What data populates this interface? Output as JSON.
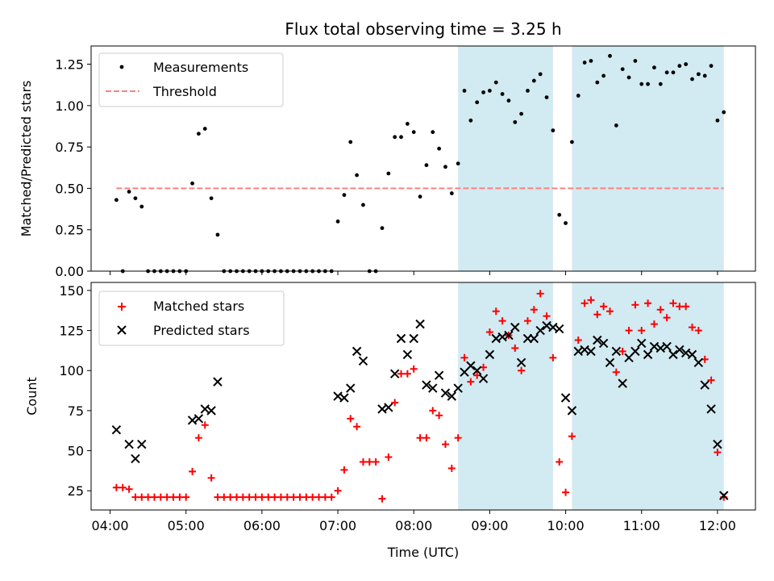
{
  "chart_data": [
    {
      "type": "scatter",
      "title": "Flux total observing time = 3.25 h",
      "ylabel": "Matched/Predicted stars",
      "xlim": [
        "03:45",
        "12:30"
      ],
      "ylim": [
        0,
        1.36
      ],
      "yticks": [
        "0.00",
        "0.25",
        "0.50",
        "0.75",
        "1.00",
        "1.25"
      ],
      "legend_position": "upper-left",
      "highlight_spans": [
        [
          "08:35",
          "09:50"
        ],
        [
          "10:05",
          "12:05"
        ]
      ],
      "highlight_color": "#add8e6",
      "series": [
        {
          "name": "Measurements",
          "color": "#000000",
          "x": [
            "04:05",
            "04:10",
            "04:15",
            "04:20",
            "04:25",
            "04:30",
            "04:35",
            "04:40",
            "04:45",
            "04:50",
            "04:55",
            "05:00",
            "05:05",
            "05:10",
            "05:15",
            "05:20",
            "05:25",
            "05:30",
            "05:35",
            "05:40",
            "05:45",
            "05:50",
            "05:55",
            "06:00",
            "06:05",
            "06:10",
            "06:15",
            "06:20",
            "06:25",
            "06:30",
            "06:35",
            "06:40",
            "06:45",
            "06:50",
            "06:55",
            "07:00",
            "07:05",
            "07:10",
            "07:15",
            "07:20",
            "07:25",
            "07:30",
            "07:35",
            "07:40",
            "07:45",
            "07:50",
            "07:55",
            "08:00",
            "08:05",
            "08:10",
            "08:15",
            "08:20",
            "08:25",
            "08:30",
            "08:35",
            "08:40",
            "08:45",
            "08:50",
            "08:55",
            "09:00",
            "09:05",
            "09:10",
            "09:15",
            "09:20",
            "09:25",
            "09:30",
            "09:35",
            "09:40",
            "09:45",
            "09:50",
            "09:55",
            "10:00",
            "10:05",
            "10:10",
            "10:15",
            "10:20",
            "10:25",
            "10:30",
            "10:35",
            "10:40",
            "10:45",
            "10:50",
            "10:55",
            "11:00",
            "11:05",
            "11:10",
            "11:15",
            "11:20",
            "11:25",
            "11:30",
            "11:35",
            "11:40",
            "11:45",
            "11:50",
            "11:55",
            "12:00",
            "12:05"
          ],
          "y": [
            0.43,
            0.0,
            0.48,
            0.44,
            0.39,
            0.0,
            0.0,
            0.0,
            0.0,
            0.0,
            0.0,
            0.0,
            0.53,
            0.83,
            0.86,
            0.44,
            0.22,
            0.0,
            0.0,
            0.0,
            0.0,
            0.0,
            0.0,
            0.0,
            0.0,
            0.0,
            0.0,
            0.0,
            0.0,
            0.0,
            0.0,
            0.0,
            0.0,
            0.0,
            0.0,
            0.3,
            0.46,
            0.78,
            0.58,
            0.4,
            0.0,
            0.0,
            0.26,
            0.59,
            0.81,
            0.81,
            0.89,
            0.84,
            0.45,
            0.64,
            0.84,
            0.74,
            0.63,
            0.47,
            0.65,
            1.09,
            0.91,
            1.02,
            1.08,
            1.09,
            1.14,
            1.07,
            1.03,
            0.9,
            0.95,
            1.09,
            1.15,
            1.19,
            1.05,
            0.85,
            0.34,
            0.29,
            0.78,
            1.06,
            1.26,
            1.27,
            1.14,
            1.18,
            1.3,
            0.88,
            1.22,
            1.17,
            1.27,
            1.13,
            1.13,
            1.23,
            1.13,
            1.2,
            1.2,
            1.24,
            1.25,
            1.16,
            1.19,
            1.18,
            1.24,
            0.91,
            0.96
          ]
        },
        {
          "name": "Threshold",
          "color": "#ff8080",
          "style": "dashed",
          "x": [
            "04:05",
            "12:05"
          ],
          "y": [
            0.5,
            0.5
          ]
        }
      ]
    },
    {
      "type": "scatter",
      "xlabel": "Time (UTC)",
      "ylabel": "Count",
      "xlim": [
        "03:45",
        "12:30"
      ],
      "ylim": [
        13,
        155
      ],
      "xticks": [
        "04:00",
        "05:00",
        "06:00",
        "07:00",
        "08:00",
        "09:00",
        "10:00",
        "11:00",
        "12:00"
      ],
      "yticks": [
        "25",
        "50",
        "75",
        "100",
        "125",
        "150"
      ],
      "legend_position": "upper-left",
      "highlight_spans": [
        [
          "08:35",
          "09:50"
        ],
        [
          "10:05",
          "12:05"
        ]
      ],
      "highlight_color": "#add8e6",
      "series": [
        {
          "name": "Matched stars",
          "marker": "plus",
          "color": "#ff0000",
          "x": [
            "04:05",
            "04:10",
            "04:15",
            "04:20",
            "04:25",
            "04:30",
            "04:35",
            "04:40",
            "04:45",
            "04:50",
            "04:55",
            "05:00",
            "05:05",
            "05:10",
            "05:15",
            "05:20",
            "05:25",
            "05:30",
            "05:35",
            "05:40",
            "05:45",
            "05:50",
            "05:55",
            "06:00",
            "06:05",
            "06:10",
            "06:15",
            "06:20",
            "06:25",
            "06:30",
            "06:35",
            "06:40",
            "06:45",
            "06:50",
            "06:55",
            "07:00",
            "07:05",
            "07:10",
            "07:15",
            "07:20",
            "07:25",
            "07:30",
            "07:35",
            "07:40",
            "07:45",
            "07:50",
            "07:55",
            "08:00",
            "08:05",
            "08:10",
            "08:15",
            "08:20",
            "08:25",
            "08:30",
            "08:35",
            "08:40",
            "08:45",
            "08:50",
            "08:55",
            "09:00",
            "09:05",
            "09:10",
            "09:15",
            "09:20",
            "09:25",
            "09:30",
            "09:35",
            "09:40",
            "09:45",
            "09:50",
            "09:55",
            "10:00",
            "10:05",
            "10:10",
            "10:15",
            "10:20",
            "10:25",
            "10:30",
            "10:35",
            "10:40",
            "10:45",
            "10:50",
            "10:55",
            "11:00",
            "11:05",
            "11:10",
            "11:15",
            "11:20",
            "11:25",
            "11:30",
            "11:35",
            "11:40",
            "11:45",
            "11:50",
            "11:55",
            "12:00",
            "12:05"
          ],
          "y": [
            27,
            27,
            26,
            21,
            21,
            21,
            21,
            21,
            21,
            21,
            21,
            21,
            37,
            58,
            66,
            33,
            21,
            21,
            21,
            21,
            21,
            21,
            21,
            21,
            21,
            21,
            21,
            21,
            21,
            21,
            21,
            21,
            21,
            21,
            21,
            25,
            38,
            70,
            65,
            43,
            43,
            43,
            20,
            46,
            80,
            98,
            98,
            101,
            58,
            58,
            75,
            72,
            54,
            39,
            58,
            108,
            93,
            97,
            102,
            124,
            137,
            131,
            122,
            114,
            100,
            131,
            138,
            148,
            134,
            108,
            43,
            24,
            59,
            119,
            142,
            144,
            135,
            140,
            137,
            99,
            112,
            125,
            141,
            125,
            142,
            129,
            138,
            133,
            142,
            140,
            140,
            127,
            125,
            107,
            94,
            49,
            21
          ]
        },
        {
          "name": "Predicted stars",
          "marker": "x",
          "color": "#000000",
          "x": [
            "04:05",
            "04:15",
            "04:20",
            "04:25",
            "05:05",
            "05:10",
            "05:15",
            "05:20",
            "05:25",
            "07:00",
            "07:05",
            "07:10",
            "07:15",
            "07:20",
            "07:35",
            "07:40",
            "07:45",
            "07:50",
            "07:55",
            "08:00",
            "08:05",
            "08:10",
            "08:15",
            "08:20",
            "08:25",
            "08:30",
            "08:35",
            "08:40",
            "08:45",
            "08:50",
            "08:55",
            "09:00",
            "09:05",
            "09:10",
            "09:15",
            "09:20",
            "09:25",
            "09:30",
            "09:35",
            "09:40",
            "09:45",
            "09:50",
            "09:55",
            "10:00",
            "10:05",
            "10:10",
            "10:15",
            "10:20",
            "10:25",
            "10:30",
            "10:35",
            "10:40",
            "10:45",
            "10:50",
            "10:55",
            "11:00",
            "11:05",
            "11:10",
            "11:15",
            "11:20",
            "11:25",
            "11:30",
            "11:35",
            "11:40",
            "11:45",
            "11:50",
            "11:55",
            "12:00",
            "12:05"
          ],
          "y": [
            63,
            54,
            45,
            54,
            69,
            70,
            76,
            75,
            93,
            84,
            83,
            89,
            112,
            106,
            76,
            77,
            98,
            120,
            110,
            120,
            129,
            91,
            89,
            97,
            86,
            84,
            89,
            99,
            103,
            100,
            95,
            110,
            120,
            121,
            122,
            127,
            105,
            120,
            120,
            125,
            128,
            127,
            126,
            83,
            75,
            112,
            113,
            112,
            119,
            117,
            105,
            112,
            92,
            108,
            112,
            117,
            110,
            115,
            114,
            115,
            110,
            113,
            111,
            110,
            105,
            91,
            76,
            54,
            22
          ]
        }
      ]
    }
  ]
}
